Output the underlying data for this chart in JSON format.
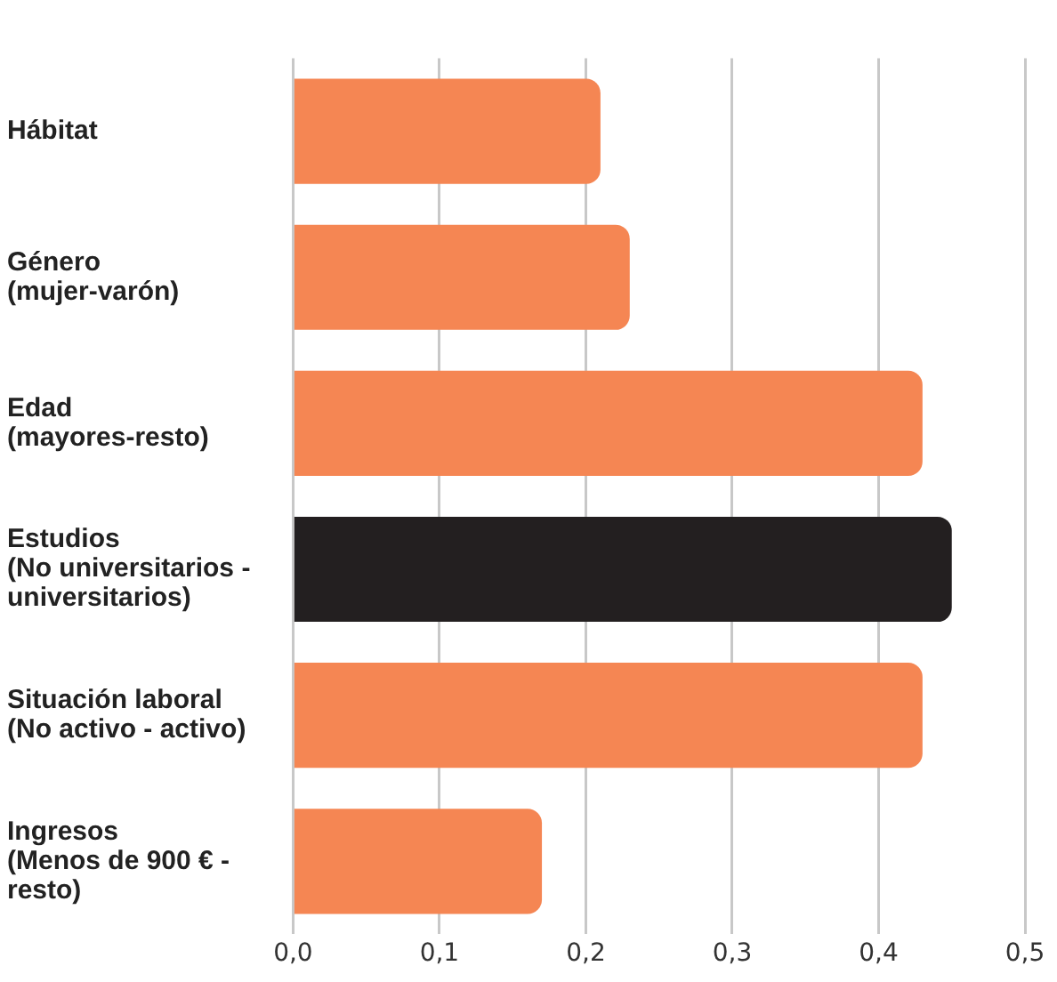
{
  "chart_data": {
    "type": "bar",
    "orientation": "horizontal",
    "categories": [
      "Hábitat",
      "Género\n(mujer-varón)",
      "Edad\n(mayores-resto)",
      "Estudios\n(No universitarios -\nuniversitarios)",
      "Situación laboral\n(No activo - activo)",
      "Ingresos\n(Menos de 900 € -\nresto)"
    ],
    "values": [
      0.21,
      0.23,
      0.43,
      0.45,
      0.43,
      0.17
    ],
    "colors": [
      "#f58653",
      "#f58653",
      "#f58653",
      "#231f20",
      "#f58653",
      "#f58653"
    ],
    "xlim": [
      0,
      0.5
    ],
    "xticks": [
      {
        "value": 0,
        "label": "0,0"
      },
      {
        "value": 0.1,
        "label": "0,1"
      },
      {
        "value": 0.2,
        "label": "0,2"
      },
      {
        "value": 0.3,
        "label": "0,3"
      },
      {
        "value": 0.4,
        "label": "0,4"
      },
      {
        "value": 0.5,
        "label": "0,5"
      }
    ],
    "grid": "x",
    "legend": false
  }
}
